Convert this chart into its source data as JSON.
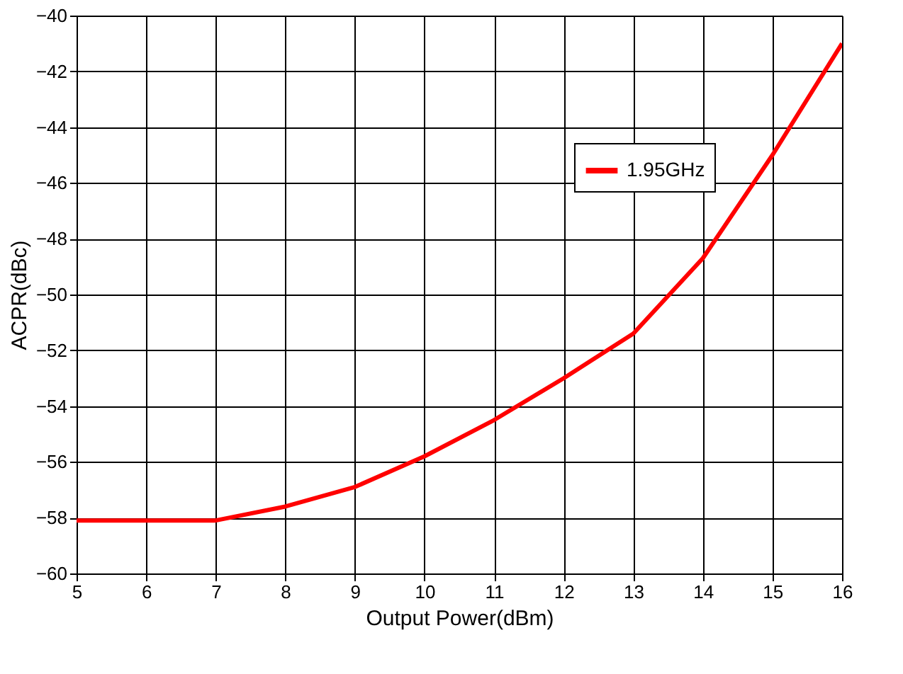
{
  "chart_data": {
    "type": "line",
    "xlabel": "Output Power(dBm)",
    "ylabel": "ACPR(dBc)",
    "x": [
      5,
      6,
      7,
      8,
      9,
      10,
      11,
      12,
      13,
      14,
      15,
      16
    ],
    "series": [
      {
        "name": "1.95GHz",
        "color": "#ff0000",
        "values": [
          -58.1,
          -58.1,
          -58.1,
          -57.6,
          -56.9,
          -55.8,
          -54.5,
          -53.0,
          -51.4,
          -48.7,
          -45.0,
          -41.0
        ]
      }
    ],
    "xlim": [
      5,
      16
    ],
    "xticks": [
      5,
      6,
      7,
      8,
      9,
      10,
      11,
      12,
      13,
      14,
      15,
      16
    ],
    "ylim": [
      -60,
      -40
    ],
    "yticks": [
      -60,
      -58,
      -56,
      -54,
      -52,
      -50,
      -48,
      -46,
      -44,
      -42,
      -40
    ],
    "grid": true,
    "legend": "top right",
    "marker": "none",
    "line_style": "solid"
  }
}
